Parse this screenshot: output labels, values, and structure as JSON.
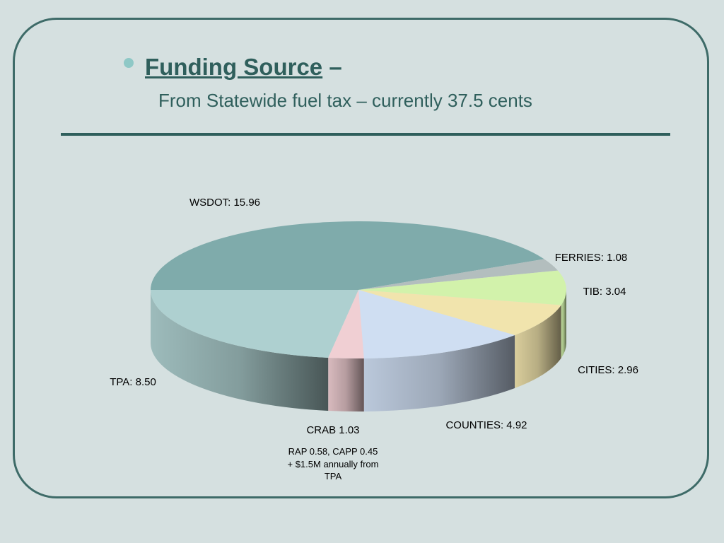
{
  "slide": {
    "title": "Funding Source",
    "title_suffix": " –",
    "subtitle": "From Statewide fuel tax – currently 37.5 cents"
  },
  "chart_data": {
    "type": "pie",
    "title": "",
    "slices": [
      {
        "label": "WSDOT: 15.96",
        "value": 15.96,
        "color": "#7fabab"
      },
      {
        "label": "FERRIES: 1.08",
        "value": 1.08,
        "color": "#b3bebe"
      },
      {
        "label": "TIB: 3.04",
        "value": 3.04,
        "color": "#d2f2ab"
      },
      {
        "label": "CITIES: 2.96",
        "value": 2.96,
        "color": "#f1e4ad"
      },
      {
        "label": "COUNTIES: 4.92",
        "value": 4.92,
        "color": "#cfdef2"
      },
      {
        "label": "CRAB 1.03",
        "value": 1.03,
        "color": "#f0cfd3"
      },
      {
        "label": "TPA: 8.50",
        "value": 8.5,
        "color": "#aed0d0"
      }
    ],
    "note_lines": [
      "RAP 0.58, CAPP 0.45",
      "+ $1.5M annually from",
      "TPA"
    ]
  }
}
